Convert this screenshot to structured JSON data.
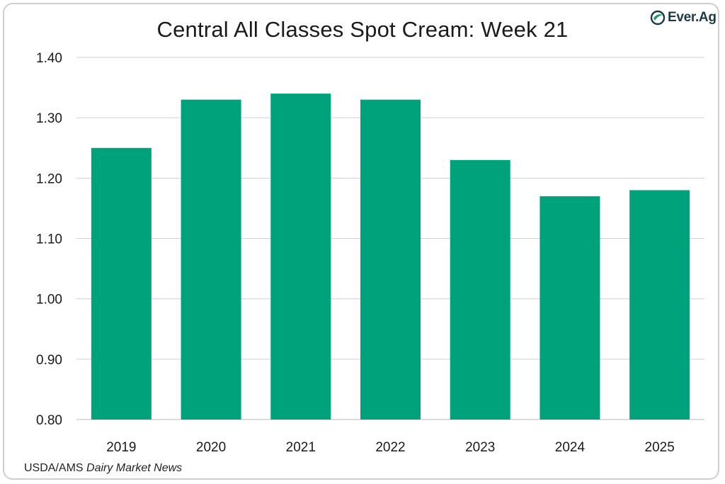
{
  "title": "Central All Classes Spot Cream: Week 21",
  "logo": {
    "text": "Ever.Ag",
    "icon": "everag-leaf-icon",
    "color": "#1d3a45",
    "accent": "#1a9a6c"
  },
  "source": {
    "prefix": "USDA/AMS ",
    "italic": "Dairy Market News"
  },
  "chart_data": {
    "type": "bar",
    "title": "Central All Classes Spot Cream: Week 21",
    "categories": [
      "2019",
      "2020",
      "2021",
      "2022",
      "2023",
      "2024",
      "2025"
    ],
    "values": [
      1.25,
      1.33,
      1.34,
      1.33,
      1.23,
      1.17,
      1.18
    ],
    "xlabel": "",
    "ylabel": "",
    "ylim": [
      0.8,
      1.4
    ],
    "yticks": [
      "0.80",
      "0.90",
      "1.00",
      "1.10",
      "1.20",
      "1.30",
      "1.40"
    ],
    "grid": true,
    "legend": "none",
    "bar_color": "#00a27c",
    "grid_color": "#d0d0d0"
  }
}
